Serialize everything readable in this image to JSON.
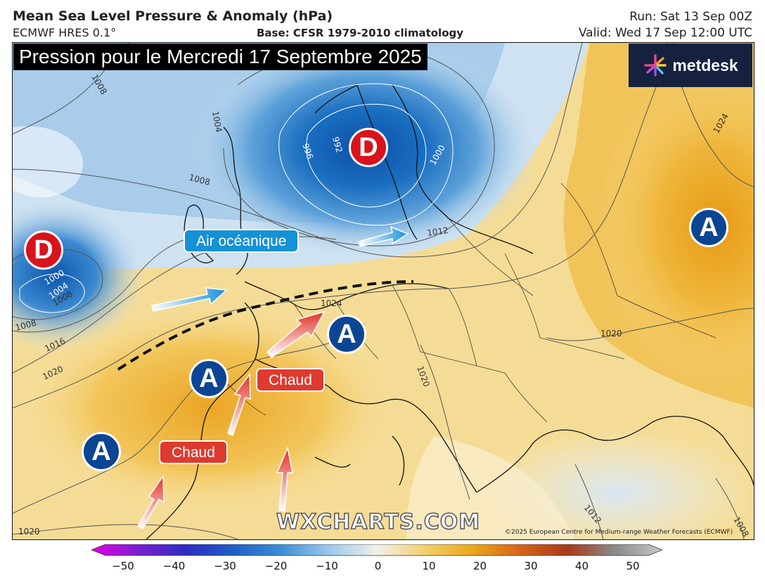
{
  "header": {
    "title": "Mean Sea Level Pressure & Anomaly (hPa)",
    "subtitle": "ECMWF HRES 0.1°",
    "base": "Base: CFSR 1979-2010 climatology",
    "run": "Run: Sat 13 Sep 00Z",
    "valid": "Valid: Wed 17 Sep 12:00 UTC"
  },
  "headline": "Pression pour le Mercredi 17 Septembre 2025",
  "logo": {
    "text": "metdesk",
    "icon": "burst-icon"
  },
  "watermark": "WXCHARTS.COM",
  "copyright": "©2025 European Centre for Medium-range Weather Forecasts (ECMWF)",
  "systems": {
    "lows": [
      {
        "letter": "D",
        "region": "Scandinavia"
      },
      {
        "letter": "D",
        "region": "Atlantic"
      }
    ],
    "highs": [
      {
        "letter": "A",
        "region": "Russia"
      },
      {
        "letter": "A",
        "region": "France"
      },
      {
        "letter": "A",
        "region": "Spain"
      },
      {
        "letter": "A",
        "region": "Atlantic-south"
      }
    ]
  },
  "annotations": {
    "oceanic": "Air océanique",
    "warm_1": "Chaud",
    "warm_2": "Chaud"
  },
  "isobars": [
    "1008",
    "1008",
    "1004",
    "1008",
    "996",
    "992",
    "1000",
    "1000",
    "1004",
    "1008",
    "1016",
    "1020",
    "1012",
    "1024",
    "1020",
    "1020",
    "1024",
    "1012",
    "1008",
    "1020"
  ],
  "legend": {
    "ticks": [
      "−50",
      "−40",
      "−30",
      "−20",
      "−10",
      "0",
      "10",
      "20",
      "30",
      "40",
      "50"
    ],
    "colors": [
      "#e400e4",
      "#7a1fd0",
      "#2c2cc4",
      "#1f5fc8",
      "#3e8fd6",
      "#9cc8ec",
      "#f2f0e8",
      "#f4d070",
      "#e9a818",
      "#d8641a",
      "#a83a1a",
      "#8a8a8a",
      "#c8c8c8"
    ]
  }
}
